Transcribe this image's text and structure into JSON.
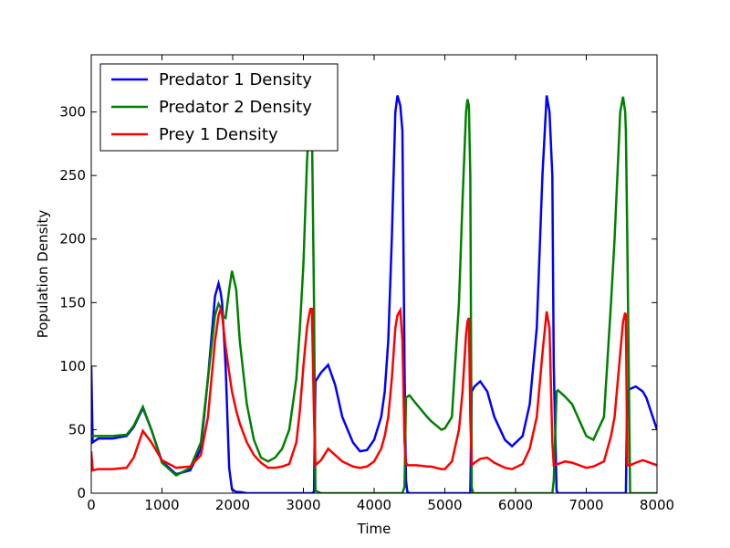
{
  "chart_data": {
    "type": "line",
    "xlabel": "Time",
    "ylabel": "Population Density",
    "xlim": [
      0,
      8000
    ],
    "ylim": [
      0,
      345
    ],
    "xticks": [
      0,
      1000,
      2000,
      3000,
      4000,
      5000,
      6000,
      7000,
      8000
    ],
    "yticks": [
      0,
      50,
      100,
      150,
      200,
      250,
      300
    ],
    "grid": false,
    "legend": "upper left",
    "x": [
      0,
      20,
      100,
      300,
      500,
      600,
      730,
      850,
      1000,
      1200,
      1400,
      1550,
      1650,
      1750,
      1800,
      1830,
      1850,
      1900,
      1950,
      1990,
      2050,
      2100,
      2200,
      2300,
      2400,
      2500,
      2600,
      2700,
      2800,
      2900,
      2950,
      3000,
      3050,
      3080,
      3100,
      3120,
      3150,
      3170,
      3250,
      3350,
      3450,
      3550,
      3700,
      3800,
      3900,
      4000,
      4100,
      4150,
      4200,
      4250,
      4300,
      4330,
      4370,
      4400,
      4430,
      4450,
      4470,
      4500,
      4600,
      4750,
      4800,
      4950,
      5000,
      5100,
      5200,
      5250,
      5300,
      5320,
      5340,
      5360,
      5380,
      5400,
      5420,
      5500,
      5600,
      5700,
      5850,
      5950,
      6100,
      6200,
      6300,
      6380,
      6440,
      6480,
      6520,
      6540,
      6580,
      6600,
      6700,
      6800,
      7000,
      7100,
      7250,
      7350,
      7400,
      7480,
      7520,
      7550,
      7560,
      7580,
      7620,
      7700,
      7800,
      7850,
      8000
    ],
    "series": [
      {
        "name": "Predator 1 Density",
        "color": "#0000ff",
        "values": [
          100,
          40,
          43,
          43,
          45,
          52,
          67,
          50,
          25,
          15,
          18,
          35,
          90,
          155,
          165,
          158,
          150,
          100,
          20,
          3,
          1,
          1,
          0,
          0,
          0,
          0,
          0,
          0,
          0,
          0,
          0,
          0,
          0,
          0,
          0,
          0,
          1,
          88,
          95,
          101,
          85,
          60,
          40,
          33,
          34,
          42,
          60,
          80,
          120,
          200,
          300,
          313,
          305,
          285,
          100,
          10,
          1,
          0,
          0,
          0,
          0,
          0,
          0,
          0,
          0,
          0,
          0,
          0,
          0,
          0,
          80,
          82,
          84,
          88,
          80,
          60,
          42,
          37,
          45,
          70,
          130,
          250,
          313,
          300,
          250,
          100,
          2,
          0,
          0,
          0,
          0,
          0,
          0,
          0,
          0,
          0,
          0,
          0,
          0,
          80,
          82,
          84,
          80,
          75,
          50
        ]
      },
      {
        "name": "Predator 2 Density",
        "color": "#008000",
        "values": [
          45,
          45,
          45,
          45,
          46,
          53,
          68,
          50,
          24,
          14,
          20,
          40,
          90,
          140,
          149,
          146,
          140,
          138,
          160,
          175,
          160,
          120,
          70,
          42,
          28,
          25,
          28,
          35,
          50,
          90,
          130,
          180,
          260,
          290,
          295,
          290,
          150,
          2,
          0,
          0,
          0,
          0,
          0,
          0,
          0,
          0,
          0,
          0,
          0,
          0,
          0,
          0,
          0,
          0,
          5,
          75,
          76,
          77,
          70,
          60,
          57,
          50,
          51,
          60,
          150,
          230,
          300,
          310,
          305,
          250,
          5,
          0,
          0,
          0,
          0,
          0,
          0,
          0,
          0,
          0,
          0,
          0,
          0,
          0,
          0,
          10,
          80,
          81,
          76,
          70,
          45,
          42,
          60,
          150,
          200,
          300,
          312,
          300,
          285,
          200,
          0,
          0,
          0,
          0,
          0
        ]
      },
      {
        "name": "Prey 1 Density",
        "color": "#ff0000",
        "values": [
          33,
          18,
          19,
          19,
          20,
          28,
          49,
          40,
          26,
          20,
          21,
          30,
          60,
          120,
          140,
          145,
          140,
          115,
          95,
          80,
          65,
          55,
          40,
          30,
          24,
          20,
          20,
          21,
          23,
          40,
          65,
          100,
          130,
          140,
          145,
          145,
          60,
          22,
          26,
          35,
          30,
          25,
          21,
          20,
          21,
          25,
          35,
          45,
          60,
          90,
          130,
          140,
          144,
          120,
          40,
          24,
          22,
          22,
          22,
          21,
          21,
          19,
          19,
          25,
          50,
          80,
          125,
          135,
          138,
          60,
          22,
          23,
          24,
          27,
          28,
          24,
          20,
          19,
          23,
          35,
          60,
          110,
          143,
          130,
          40,
          22,
          23,
          23,
          25,
          24,
          20,
          21,
          25,
          45,
          60,
          110,
          135,
          142,
          140,
          22,
          22,
          24,
          26,
          25,
          22
        ]
      }
    ]
  }
}
